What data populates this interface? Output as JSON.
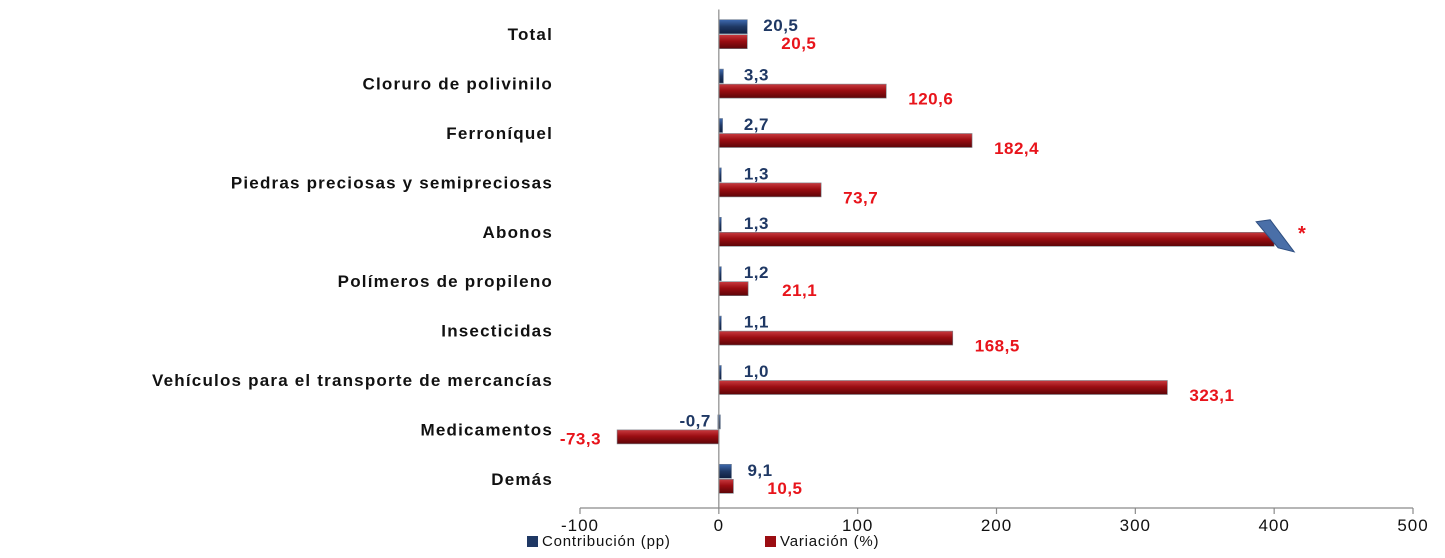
{
  "chart_data": {
    "type": "bar",
    "orientation": "horizontal",
    "categories": [
      "Total",
      "Cloruro de polivinilo",
      "Ferroníquel",
      "Piedras preciosas y semipreciosas",
      "Abonos",
      "Polímeros de propileno",
      "Insecticidas",
      "Vehículos para el transporte de mercancías",
      "Medicamentos",
      "Demás"
    ],
    "series": [
      {
        "name": "Contribución (pp)",
        "color": "#1F3864",
        "values": [
          20.5,
          3.3,
          2.7,
          1.3,
          1.3,
          1.2,
          1.1,
          1.0,
          -0.7,
          9.1
        ],
        "labels": [
          "20,5",
          "3,3",
          "2,7",
          "1,3",
          "1,3",
          "1,2",
          "1,1",
          "1,0",
          "-0,7",
          "9,1"
        ]
      },
      {
        "name": "Variación (%)",
        "color": "#9B0D12",
        "values": [
          20.5,
          120.6,
          182.4,
          73.7,
          400,
          21.1,
          168.5,
          323.1,
          -73.3,
          10.5
        ],
        "labels": [
          "20,5",
          "120,6",
          "182,4",
          "73,7",
          "*",
          "21,1",
          "168,5",
          "323,1",
          "-73,3",
          "10,5"
        ]
      }
    ],
    "truncated_category": "Abonos",
    "truncated_marker": "*",
    "xlim": [
      -100,
      500
    ],
    "xticks": [
      -100,
      0,
      100,
      200,
      300,
      400,
      500
    ],
    "xtick_labels": [
      "-100",
      "0",
      "100",
      "200",
      "300",
      "400",
      "500"
    ],
    "grid": false,
    "legend": "bottom",
    "title": "",
    "xlabel": "",
    "ylabel": ""
  }
}
